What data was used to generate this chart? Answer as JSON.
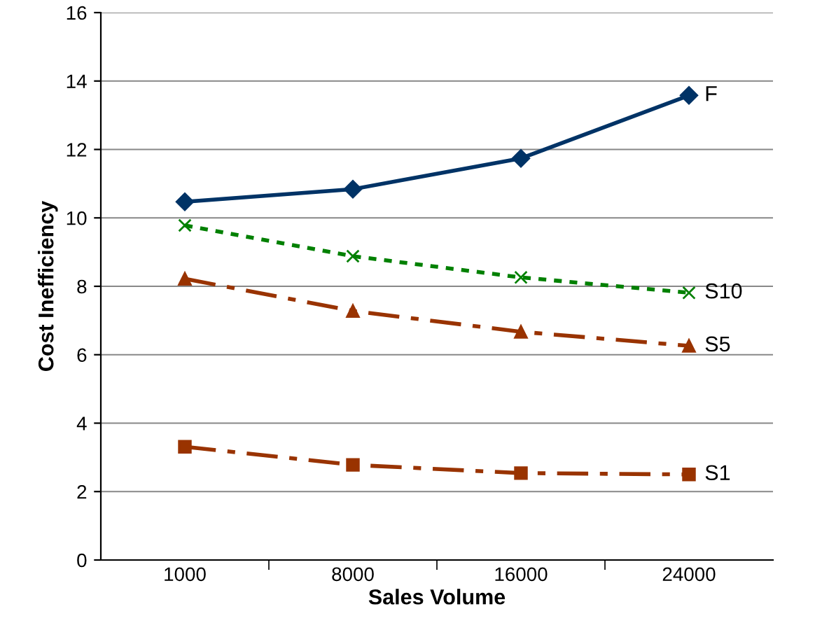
{
  "chart_data": {
    "type": "line",
    "xlabel": "Sales Volume",
    "ylabel": "Cost Inefficiency",
    "categories": [
      "1000",
      "8000",
      "16000",
      "24000"
    ],
    "series": [
      {
        "name": "F",
        "color": "#003366",
        "marker": "diamond",
        "line_style": "solid",
        "values": [
          10.47,
          10.84,
          11.74,
          13.58
        ]
      },
      {
        "name": "S10",
        "color": "#008000",
        "marker": "cross",
        "line_style": "dotted",
        "values": [
          9.78,
          8.88,
          8.26,
          7.81
        ]
      },
      {
        "name": "S5",
        "color": "#993300",
        "marker": "triangle",
        "line_style": "dashed",
        "values": [
          8.22,
          7.28,
          6.67,
          6.26
        ]
      },
      {
        "name": "S1",
        "color": "#993300",
        "marker": "square",
        "line_style": "dashed",
        "values": [
          3.31,
          2.78,
          2.54,
          2.5
        ]
      }
    ],
    "ylim": [
      0,
      16
    ],
    "yticks": [
      0,
      2,
      4,
      6,
      8,
      10,
      12,
      14,
      16
    ],
    "grid": "y",
    "legend": false
  }
}
